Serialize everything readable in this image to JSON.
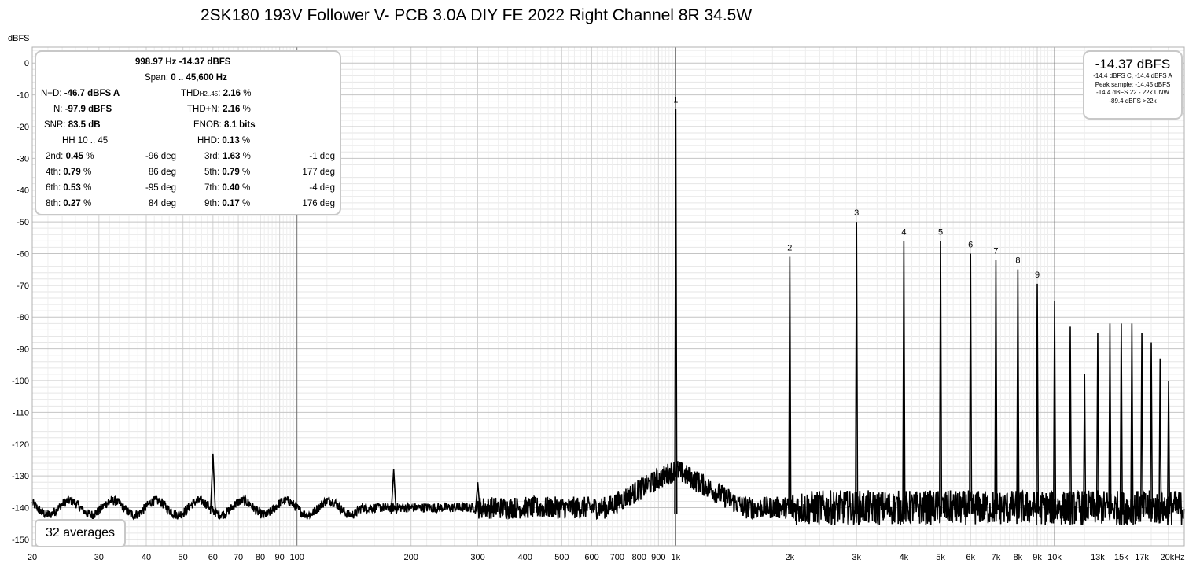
{
  "chart_data": {
    "type": "line",
    "title": "2SK180 193V Follower V- PCB 3.0A DIY FE 2022 Right Channel 8R 34.5W",
    "ylabel": "dBFS",
    "xscale": "log",
    "xlim": [
      20,
      22000
    ],
    "ylim": [
      -152,
      5
    ],
    "grid": true,
    "x_ticks": [
      {
        "v": 20,
        "label": "20"
      },
      {
        "v": 30,
        "label": "30"
      },
      {
        "v": 40,
        "label": "40"
      },
      {
        "v": 50,
        "label": "50"
      },
      {
        "v": 60,
        "label": "60"
      },
      {
        "v": 70,
        "label": "70"
      },
      {
        "v": 80,
        "label": "80"
      },
      {
        "v": 90,
        "label": "90"
      },
      {
        "v": 100,
        "label": "100"
      },
      {
        "v": 200,
        "label": "200"
      },
      {
        "v": 300,
        "label": "300"
      },
      {
        "v": 400,
        "label": "400"
      },
      {
        "v": 500,
        "label": "500"
      },
      {
        "v": 600,
        "label": "600"
      },
      {
        "v": 700,
        "label": "700"
      },
      {
        "v": 800,
        "label": "800"
      },
      {
        "v": 900,
        "label": "900"
      },
      {
        "v": 1000,
        "label": "1k"
      },
      {
        "v": 2000,
        "label": "2k"
      },
      {
        "v": 3000,
        "label": "3k"
      },
      {
        "v": 4000,
        "label": "4k"
      },
      {
        "v": 5000,
        "label": "5k"
      },
      {
        "v": 6000,
        "label": "6k"
      },
      {
        "v": 7000,
        "label": "7k"
      },
      {
        "v": 8000,
        "label": "8k"
      },
      {
        "v": 9000,
        "label": "9k"
      },
      {
        "v": 10000,
        "label": "10k"
      },
      {
        "v": 13000,
        "label": "13k"
      },
      {
        "v": 15000,
        "label": "15k"
      },
      {
        "v": 17000,
        "label": "17k"
      },
      {
        "v": 20000,
        "label": "20kHz"
      }
    ],
    "y_ticks": [
      0,
      -10,
      -20,
      -30,
      -40,
      -50,
      -60,
      -70,
      -80,
      -90,
      -100,
      -110,
      -120,
      -130,
      -140,
      -150
    ],
    "noise_floor_db": -140,
    "peaks": [
      {
        "x": 60,
        "y": -123
      },
      {
        "x": 180,
        "y": -128
      },
      {
        "x": 300,
        "y": -132
      },
      {
        "x": 1000,
        "y": -14.4,
        "label": "1"
      },
      {
        "x": 2000,
        "y": -61,
        "label": "2"
      },
      {
        "x": 3000,
        "y": -50,
        "label": "3"
      },
      {
        "x": 4000,
        "y": -56,
        "label": "4"
      },
      {
        "x": 5000,
        "y": -56,
        "label": "5"
      },
      {
        "x": 6000,
        "y": -60,
        "label": "6"
      },
      {
        "x": 7000,
        "y": -62,
        "label": "7"
      },
      {
        "x": 8000,
        "y": -65,
        "label": "8"
      },
      {
        "x": 9000,
        "y": -69.5,
        "label": "9"
      },
      {
        "x": 10000,
        "y": -75
      },
      {
        "x": 11000,
        "y": -83
      },
      {
        "x": 12000,
        "y": -98
      },
      {
        "x": 13000,
        "y": -85
      },
      {
        "x": 14000,
        "y": -82
      },
      {
        "x": 15000,
        "y": -82
      },
      {
        "x": 16000,
        "y": -82
      },
      {
        "x": 17000,
        "y": -85
      },
      {
        "x": 18000,
        "y": -88
      },
      {
        "x": 19000,
        "y": -93
      },
      {
        "x": 20000,
        "y": -100
      }
    ]
  },
  "stats": {
    "fundamental": "998.97 Hz  -14.37 dBFS",
    "span_label": "Span:",
    "span_value": "0 .. 45,600 Hz",
    "nd_label": "N+D:",
    "nd_value": "-46.7 dBFS A",
    "thd_label": "THD",
    "thd_sub": "H2..45",
    "thd_colon": ":",
    "thd_value": "2.16",
    "n_label": "N:",
    "n_value": "-97.9 dBFS",
    "thdn_label": "THD+N:",
    "thdn_value": "2.16",
    "snr_label": "SNR:",
    "snr_value": "83.5 dB",
    "enob_label": "ENOB:",
    "enob_value": "8.1 bits",
    "hh_label": "HH 10 .. 45",
    "hhd_label": "HHD:",
    "hhd_value": "0.13",
    "pct": "%",
    "harmonics": [
      {
        "label": "2nd:",
        "value": "0.45",
        "phase": "-96 deg"
      },
      {
        "label": "3rd:",
        "value": "1.63",
        "phase": "-1 deg"
      },
      {
        "label": "4th:",
        "value": "0.79",
        "phase": "86 deg"
      },
      {
        "label": "5th:",
        "value": "0.79",
        "phase": "177 deg"
      },
      {
        "label": "6th:",
        "value": "0.53",
        "phase": "-95 deg"
      },
      {
        "label": "7th:",
        "value": "0.40",
        "phase": "-4 deg"
      },
      {
        "label": "8th:",
        "value": "0.27",
        "phase": "84 deg"
      },
      {
        "label": "9th:",
        "value": "0.17",
        "phase": "176 deg"
      }
    ]
  },
  "level": {
    "main": "-14.37 dBFS",
    "lines": [
      "-14.4 dBFS C, -14.4 dBFS A",
      "Peak sample: -14.45 dBFS",
      "-14.4 dBFS 22 - 22k UNW",
      "-89.4 dBFS >22k"
    ]
  },
  "averages": "32 averages"
}
